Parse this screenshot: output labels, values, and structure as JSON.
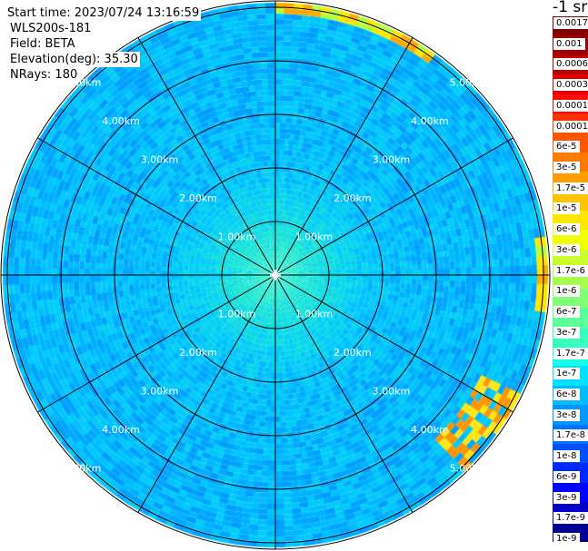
{
  "info": {
    "start_time": "Start time: 2023/07/24 13:16:59",
    "instrument": "WLS200s-181",
    "field": "Field: BETA",
    "elevation": "Elevation(deg): 35.30",
    "nrays": "NRays: 180"
  },
  "colorbar": {
    "unit_title": "-1 sr",
    "labels": [
      "0.0017",
      "0.001",
      "0.0006",
      "0.0003",
      "0.00017",
      "0.0001",
      "6e-5",
      "3e-5",
      "1.7e-5",
      "1e-5",
      "6e-6",
      "3e-6",
      "1.7e-6",
      "1e-6",
      "6e-7",
      "3e-7",
      "1.7e-7",
      "1e-7",
      "6e-8",
      "3e-8",
      "1.7e-8",
      "1e-8",
      "6e-9",
      "3e-9",
      "1.7e-9",
      "1e-9"
    ],
    "colors": [
      "#800000",
      "#9e0000",
      "#be0000",
      "#de0000",
      "#ff0a00",
      "#ff3000",
      "#ff5400",
      "#ff7a00",
      "#ffa000",
      "#ffc400",
      "#ffe800",
      "#f0ff06",
      "#caff2c",
      "#a6ff50",
      "#80ff77",
      "#5cff9a",
      "#36ffc0",
      "#12ffe5",
      "#00e0ff",
      "#00bcff",
      "#0098ff",
      "#0074ff",
      "#0050ff",
      "#0028ff",
      "#0004ff",
      "#0000c8",
      "#000096"
    ]
  },
  "range_rings": {
    "labels": [
      "1.00km",
      "2.00km",
      "3.00km",
      "4.00km",
      "5.00km"
    ]
  },
  "rays": 180,
  "spokes": 12
}
